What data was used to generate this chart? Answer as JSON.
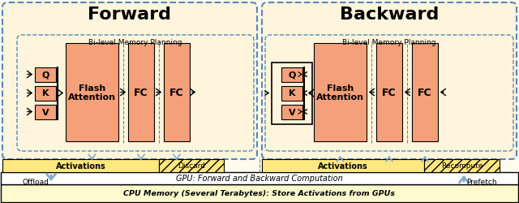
{
  "title_forward": "Forward",
  "title_backward": "Backward",
  "bi_level_text": "Bi-level Memory Planning",
  "gpu_text": "GPU: Forward and Backward Computation",
  "cpu_text": "CPU Memory (Several Terabytes): Store Activations from GPUs",
  "offload_text": "Offload",
  "prefetch_text": "Prefetch",
  "activations_text": "Activations",
  "discard_text": "Discard",
  "recompute_text": "Recompute",
  "flash_text": "Flash\nAttention",
  "fc_text": "FC",
  "q_text": "Q",
  "k_text": "K",
  "v_text": "V",
  "salmon_color": "#F4A07A",
  "bg_outer": "#FFF5DC",
  "bg_white": "#FFFFFF",
  "bg_cpu": "#FFFACD",
  "activation_yellow": "#FFE880",
  "dashed_color": "#5588BB",
  "arrow_blue": "#88AACC",
  "black": "#000000",
  "figsize": [
    6.4,
    2.51
  ],
  "dpi": 100
}
